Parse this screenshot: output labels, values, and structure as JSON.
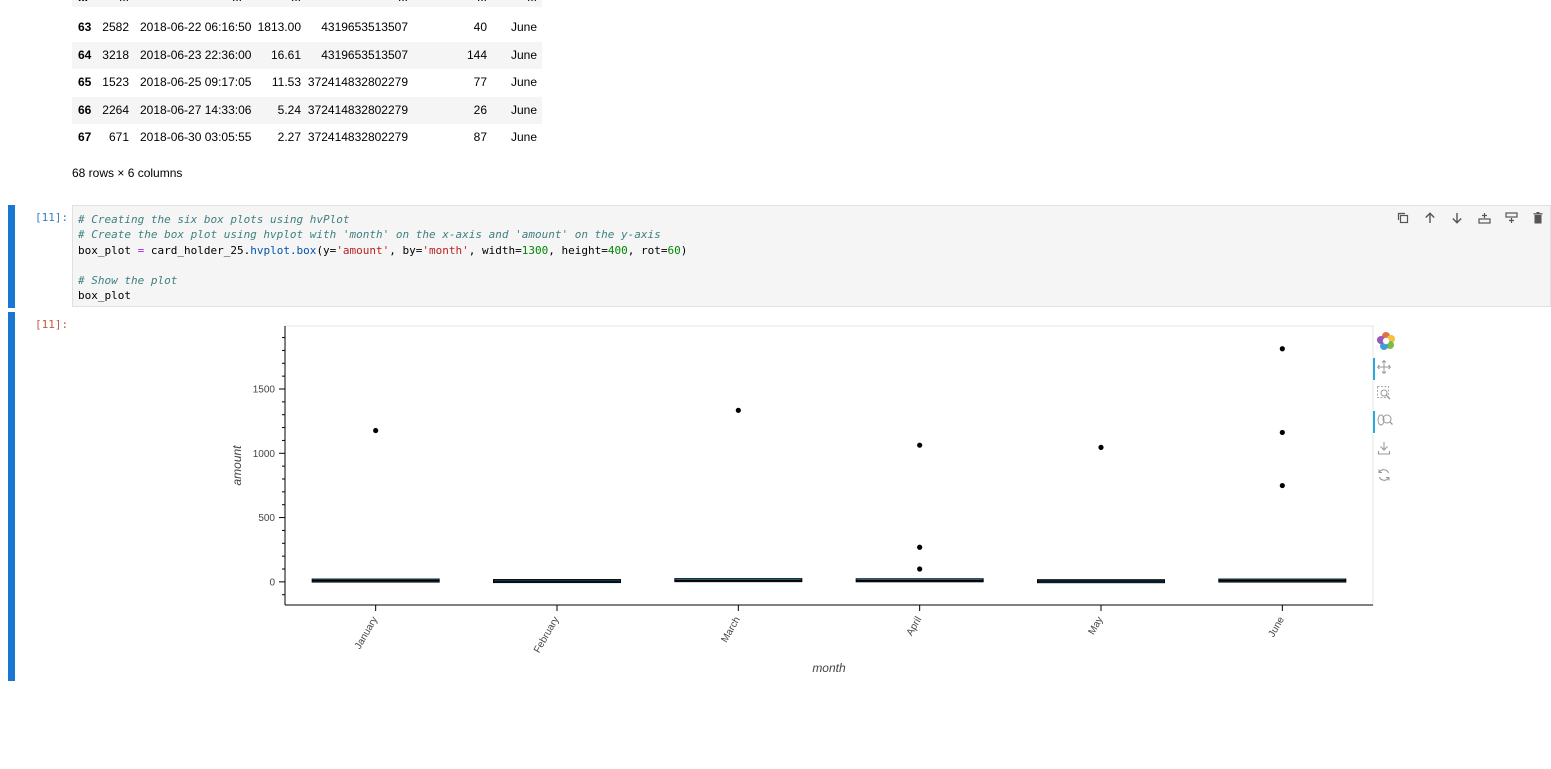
{
  "dataframe": {
    "ellipsis_row": [
      "...",
      "...",
      "...",
      "...",
      "...",
      "...",
      "..."
    ],
    "rows": [
      {
        "index": "63",
        "id": "2582",
        "date": "2018-06-22 06:16:50",
        "amount": "1813.00",
        "card": "4319653513507",
        "merchant": "40",
        "month": "June"
      },
      {
        "index": "64",
        "id": "3218",
        "date": "2018-06-23 22:36:00",
        "amount": "16.61",
        "card": "4319653513507",
        "merchant": "144",
        "month": "June"
      },
      {
        "index": "65",
        "id": "1523",
        "date": "2018-06-25 09:17:05",
        "amount": "11.53",
        "card": "372414832802279",
        "merchant": "77",
        "month": "June"
      },
      {
        "index": "66",
        "id": "2264",
        "date": "2018-06-27 14:33:06",
        "amount": "5.24",
        "card": "372414832802279",
        "merchant": "26",
        "month": "June"
      },
      {
        "index": "67",
        "id": "671",
        "date": "2018-06-30 03:05:55",
        "amount": "2.27",
        "card": "372414832802279",
        "merchant": "87",
        "month": "June"
      }
    ],
    "shape_caption": "68 rows × 6 columns"
  },
  "code_cell": {
    "prompt": "[11]:",
    "line1": "# Creating the six box plots using hvPlot",
    "line2": "# Create the box plot using hvplot with 'month' on the x-axis and 'amount' on the y-axis",
    "line3_var": "box_plot",
    "line3_op": " = ",
    "line3_obj": "card_holder_25.",
    "line3_attr": "hvplot.box",
    "line3_p1": "(y=",
    "line3_s1": "'amount'",
    "line3_p2": ", by=",
    "line3_s2": "'month'",
    "line3_p3": ", width=",
    "line3_n1": "1300",
    "line3_p4": ", height=",
    "line3_n2": "400",
    "line3_p5": ", rot=",
    "line3_n3": "60",
    "line3_p6": ")",
    "line5": "# Show the plot",
    "line6": "box_plot"
  },
  "output_cell": {
    "prompt": "[11]:"
  },
  "toolbar": {
    "icons": [
      "duplicate-icon",
      "move-up-icon",
      "move-down-icon",
      "insert-above-icon",
      "insert-below-icon",
      "delete-icon"
    ]
  },
  "bokeh_tools": {
    "icons": [
      "bokeh-logo-icon",
      "pan-icon",
      "box-zoom-icon",
      "wheel-zoom-icon",
      "save-icon",
      "reset-icon"
    ]
  },
  "chart_data": {
    "type": "box",
    "categories": [
      "January",
      "February",
      "March",
      "April",
      "May",
      "June"
    ],
    "xlabel": "month",
    "ylabel": "amount",
    "yticks": [
      0,
      500,
      1000,
      1500
    ],
    "ylim": [
      -180,
      1990
    ],
    "boxes": [
      {
        "q1": 2,
        "median": 10,
        "q3": 14
      },
      {
        "q1": 2,
        "median": 6,
        "q3": 10
      },
      {
        "q1": 3,
        "median": 11,
        "q3": 17
      },
      {
        "q1": 3,
        "median": 10,
        "q3": 16
      },
      {
        "q1": 2,
        "median": 6,
        "q3": 9
      },
      {
        "q1": 3,
        "median": 10,
        "q3": 14
      }
    ],
    "outliers": [
      {
        "category": "January",
        "value": 1177
      },
      {
        "category": "March",
        "value": 1334
      },
      {
        "category": "April",
        "value": 1063
      },
      {
        "category": "April",
        "value": 269
      },
      {
        "category": "April",
        "value": 100
      },
      {
        "category": "May",
        "value": 1046
      },
      {
        "category": "June",
        "value": 1813
      },
      {
        "category": "June",
        "value": 1162
      },
      {
        "category": "June",
        "value": 749
      }
    ],
    "grid": false,
    "box_color": "#30a2da",
    "outline_color": "#000000"
  }
}
